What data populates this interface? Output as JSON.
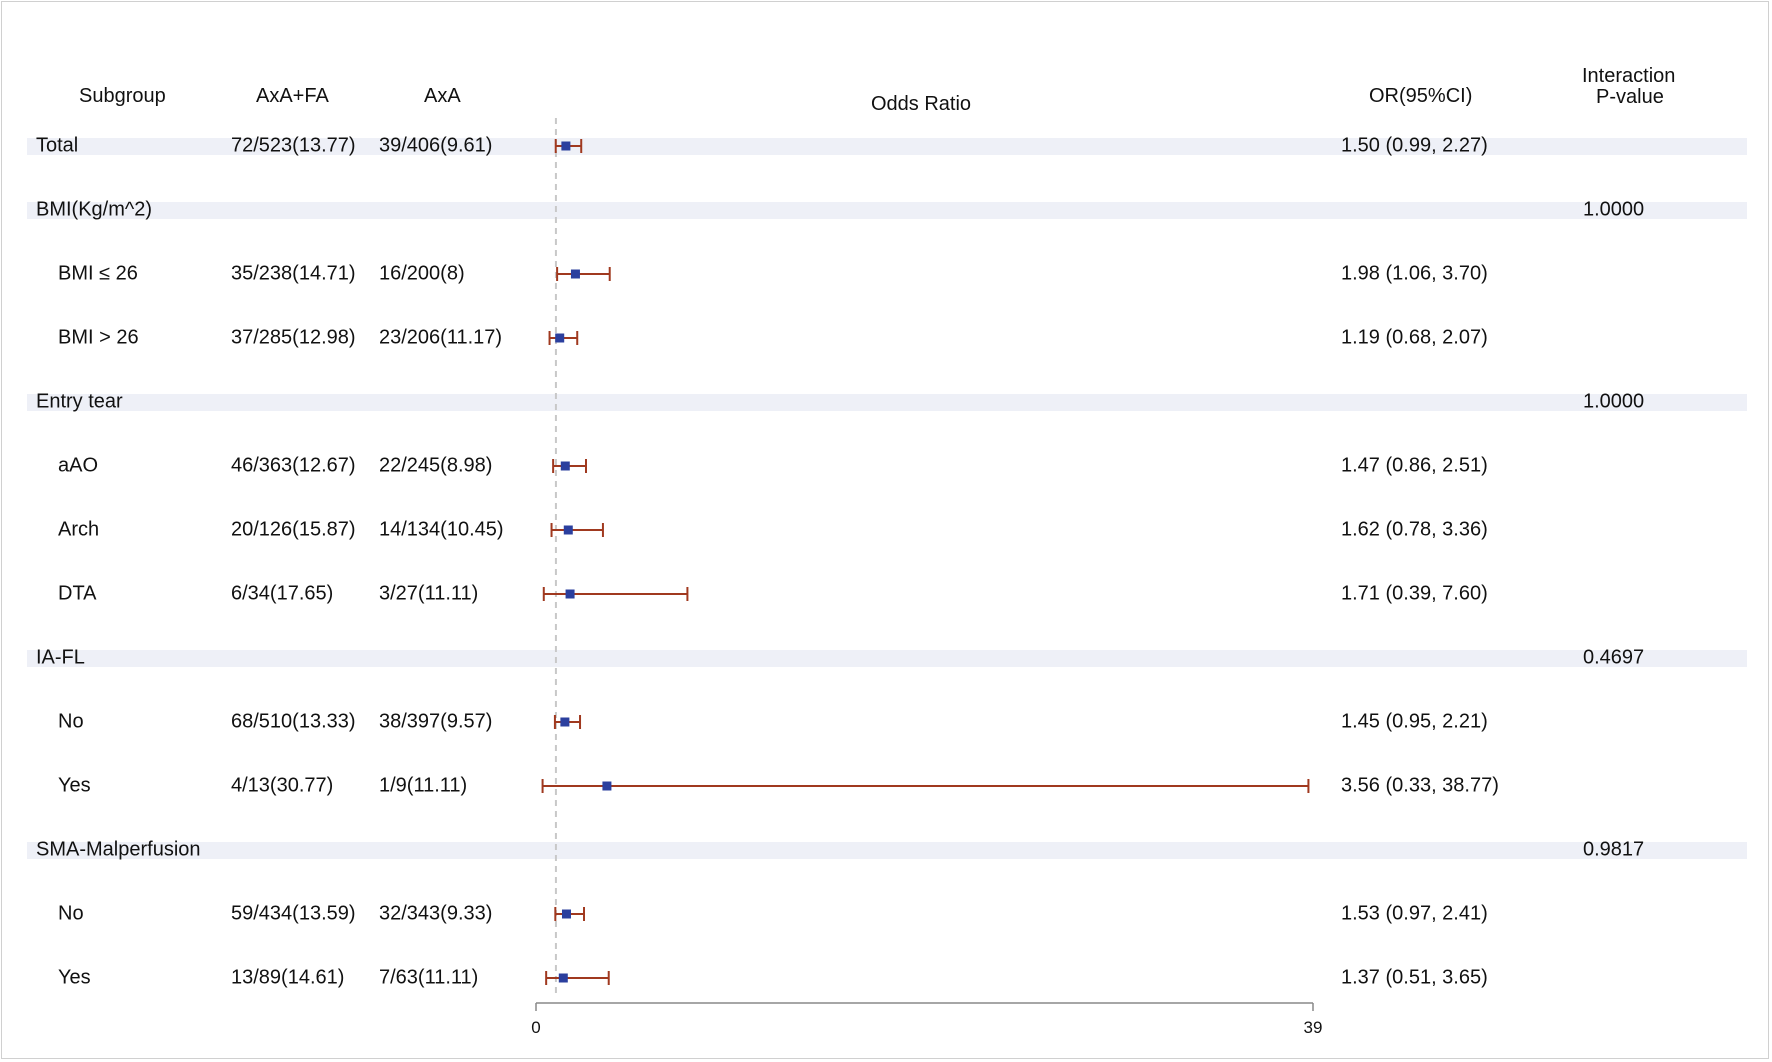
{
  "headers": {
    "subgroup": "Subgroup",
    "axa_fa": "AxA+FA",
    "axa": "AxA",
    "odds_ratio": "Odds Ratio",
    "or_ci": "OR(95%CI)",
    "interaction_line1": "Interaction",
    "interaction_line2": "P-value"
  },
  "colors": {
    "band": "#eef0f7",
    "marker": "#2b3f9e",
    "ci_line": "#a0391f",
    "reference_line": "#c8c8c8",
    "axis": "#888888"
  },
  "chart_data": {
    "type": "forest",
    "x_axis": {
      "min": 0,
      "max": 39,
      "ticks": [
        0,
        39
      ]
    },
    "reference_value": 1,
    "rows": [
      {
        "label": "Total",
        "kind": "group",
        "axa_fa": "72/523(13.77)",
        "axa": "39/406(9.61)",
        "or": 1.5,
        "lower": 0.99,
        "upper": 2.27,
        "or_text": "1.50 (0.99, 2.27)",
        "p": ""
      },
      {
        "label": "BMI(Kg/m^2)",
        "kind": "group",
        "axa_fa": "",
        "axa": "",
        "or": null,
        "lower": null,
        "upper": null,
        "or_text": "",
        "p": "1.0000"
      },
      {
        "label": "BMI ≤ 26",
        "kind": "sub",
        "axa_fa": "35/238(14.71)",
        "axa": "16/200(8)",
        "or": 1.98,
        "lower": 1.06,
        "upper": 3.7,
        "or_text": "1.98 (1.06, 3.70)",
        "p": ""
      },
      {
        "label": "BMI > 26",
        "kind": "sub",
        "axa_fa": "37/285(12.98)",
        "axa": "23/206(11.17)",
        "or": 1.19,
        "lower": 0.68,
        "upper": 2.07,
        "or_text": "1.19 (0.68, 2.07)",
        "p": ""
      },
      {
        "label": "Entry tear",
        "kind": "group",
        "axa_fa": "",
        "axa": "",
        "or": null,
        "lower": null,
        "upper": null,
        "or_text": "",
        "p": "1.0000"
      },
      {
        "label": "aAO",
        "kind": "sub",
        "axa_fa": "46/363(12.67)",
        "axa": "22/245(8.98)",
        "or": 1.47,
        "lower": 0.86,
        "upper": 2.51,
        "or_text": "1.47 (0.86, 2.51)",
        "p": ""
      },
      {
        "label": "Arch",
        "kind": "sub",
        "axa_fa": "20/126(15.87)",
        "axa": "14/134(10.45)",
        "or": 1.62,
        "lower": 0.78,
        "upper": 3.36,
        "or_text": "1.62 (0.78, 3.36)",
        "p": ""
      },
      {
        "label": "DTA",
        "kind": "sub",
        "axa_fa": "6/34(17.65)",
        "axa": "3/27(11.11)",
        "or": 1.71,
        "lower": 0.39,
        "upper": 7.6,
        "or_text": "1.71 (0.39, 7.60)",
        "p": ""
      },
      {
        "label": "IA-FL",
        "kind": "group",
        "axa_fa": "",
        "axa": "",
        "or": null,
        "lower": null,
        "upper": null,
        "or_text": "",
        "p": "0.4697"
      },
      {
        "label": "No",
        "kind": "sub",
        "axa_fa": "68/510(13.33)",
        "axa": "38/397(9.57)",
        "or": 1.45,
        "lower": 0.95,
        "upper": 2.21,
        "or_text": "1.45 (0.95, 2.21)",
        "p": ""
      },
      {
        "label": "Yes",
        "kind": "sub",
        "axa_fa": "4/13(30.77)",
        "axa": "1/9(11.11)",
        "or": 3.56,
        "lower": 0.33,
        "upper": 38.77,
        "or_text": "3.56 (0.33, 38.77)",
        "p": ""
      },
      {
        "label": "SMA-Malperfusion",
        "kind": "group",
        "axa_fa": "",
        "axa": "",
        "or": null,
        "lower": null,
        "upper": null,
        "or_text": "",
        "p": "0.9817"
      },
      {
        "label": "No",
        "kind": "sub",
        "axa_fa": "59/434(13.59)",
        "axa": "32/343(9.33)",
        "or": 1.53,
        "lower": 0.97,
        "upper": 2.41,
        "or_text": "1.53 (0.97, 2.41)",
        "p": ""
      },
      {
        "label": "Yes",
        "kind": "sub",
        "axa_fa": "13/89(14.61)",
        "axa": "7/63(11.11)",
        "or": 1.37,
        "lower": 0.51,
        "upper": 3.65,
        "or_text": "1.37 (0.51, 3.65)",
        "p": ""
      }
    ]
  }
}
